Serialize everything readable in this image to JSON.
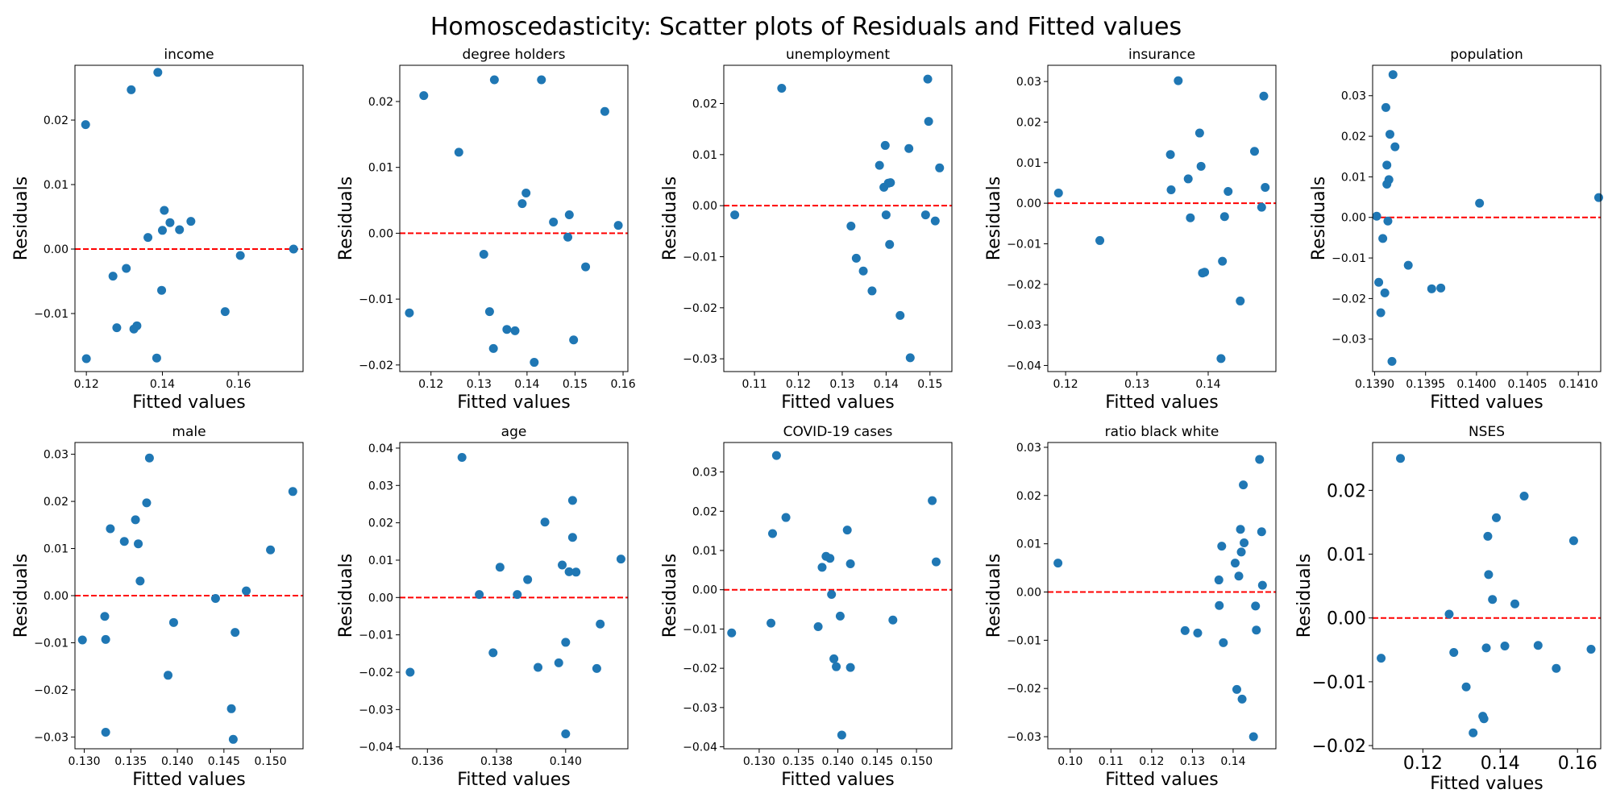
{
  "figure": {
    "title": "Homoscedasticity: Scatter plots of Residuals and Fitted values"
  },
  "colors": {
    "points": "#1f77b4",
    "reference_line": "#ff0000",
    "axes": "#000000"
  },
  "chart_data": [
    {
      "type": "scatter",
      "title": "income",
      "xlabel": "Fitted values",
      "ylabel": "Residuals",
      "xlim": [
        0.117,
        0.177
      ],
      "ylim": [
        -0.019,
        0.0285
      ],
      "xticks": [
        0.12,
        0.14,
        0.16
      ],
      "yticks": [
        -0.01,
        0.0,
        0.01,
        0.02
      ],
      "xtick_labels": [
        "0.12",
        "0.14",
        "0.16"
      ],
      "ytick_labels": [
        "−0.01",
        "0.00",
        "0.01",
        "0.02"
      ],
      "reference_line_y": 0,
      "x": [
        0.1198,
        0.127,
        0.128,
        0.1305,
        0.1318,
        0.1325,
        0.1333,
        0.1362,
        0.1385,
        0.1388,
        0.1398,
        0.14,
        0.1405,
        0.142,
        0.1445,
        0.1475,
        0.1565,
        0.1605,
        0.1745,
        0.12
      ],
      "y": [
        0.0193,
        -0.0042,
        -0.0122,
        -0.003,
        0.0247,
        -0.0124,
        -0.0119,
        0.0018,
        -0.0169,
        0.0274,
        -0.0064,
        0.0029,
        0.006,
        0.0041,
        0.003,
        0.0043,
        -0.0097,
        -0.001,
        0.0,
        -0.017
      ]
    },
    {
      "type": "scatter",
      "title": "degree holders",
      "xlabel": "Fitted values",
      "ylabel": "Residuals",
      "xlim": [
        0.1135,
        0.161
      ],
      "ylim": [
        -0.021,
        0.0255
      ],
      "xticks": [
        0.12,
        0.13,
        0.14,
        0.15,
        0.16
      ],
      "yticks": [
        -0.02,
        -0.01,
        0.0,
        0.01,
        0.02
      ],
      "xtick_labels": [
        "0.12",
        "0.13",
        "0.14",
        "0.15",
        "0.16"
      ],
      "ytick_labels": [
        "−0.02",
        "−0.01",
        "0.00",
        "0.01",
        "0.02"
      ],
      "reference_line_y": 0,
      "x": [
        0.1155,
        0.1185,
        0.1258,
        0.131,
        0.1322,
        0.133,
        0.1332,
        0.1358,
        0.1375,
        0.139,
        0.1398,
        0.1415,
        0.143,
        0.1455,
        0.1485,
        0.1488,
        0.1497,
        0.1522,
        0.1562,
        0.159
      ],
      "y": [
        -0.0121,
        0.0209,
        0.0123,
        -0.0032,
        -0.0119,
        -0.0175,
        0.0233,
        -0.0146,
        -0.0148,
        0.0045,
        0.0061,
        -0.0196,
        0.0233,
        0.0017,
        -0.0006,
        0.0028,
        -0.0162,
        -0.0051,
        0.0185,
        0.0012
      ]
    },
    {
      "type": "scatter",
      "title": "unemployment",
      "xlabel": "Fitted values",
      "ylabel": "Residuals",
      "xlim": [
        0.103,
        0.155
      ],
      "ylim": [
        -0.0325,
        0.0275
      ],
      "xticks": [
        0.11,
        0.12,
        0.13,
        0.14,
        0.15
      ],
      "yticks": [
        -0.03,
        -0.02,
        -0.01,
        0.0,
        0.01,
        0.02
      ],
      "xtick_labels": [
        "0.11",
        "0.12",
        "0.13",
        "0.14",
        "0.15"
      ],
      "ytick_labels": [
        "−0.03",
        "−0.02",
        "−0.01",
        "0.00",
        "0.01",
        "0.02"
      ],
      "reference_line_y": 0,
      "x": [
        0.1055,
        0.1162,
        0.132,
        0.1332,
        0.1348,
        0.1368,
        0.1385,
        0.1395,
        0.1398,
        0.14,
        0.1405,
        0.1408,
        0.141,
        0.1432,
        0.1452,
        0.1455,
        0.149,
        0.1495,
        0.1497,
        0.1512,
        0.1522
      ],
      "y": [
        -0.0018,
        0.023,
        -0.004,
        -0.0103,
        -0.0128,
        -0.0167,
        0.0079,
        0.0036,
        0.0118,
        -0.0018,
        0.0044,
        -0.0076,
        0.0045,
        -0.0215,
        0.0112,
        -0.0298,
        -0.0018,
        0.0248,
        0.0165,
        -0.003,
        0.0074
      ]
    },
    {
      "type": "scatter",
      "title": "insurance",
      "xlabel": "Fitted values",
      "ylabel": "Residuals",
      "xlim": [
        0.1175,
        0.1495
      ],
      "ylim": [
        -0.0415,
        0.034
      ],
      "xticks": [
        0.12,
        0.13,
        0.14
      ],
      "yticks": [
        -0.04,
        -0.03,
        -0.02,
        -0.01,
        0.0,
        0.01,
        0.02,
        0.03
      ],
      "xtick_labels": [
        "0.12",
        "0.13",
        "0.14"
      ],
      "ytick_labels": [
        "−0.04",
        "−0.03",
        "−0.02",
        "−0.01",
        "0.00",
        "0.01",
        "0.02",
        "0.03"
      ],
      "reference_line_y": 0,
      "x": [
        0.119,
        0.1248,
        0.1347,
        0.1348,
        0.1358,
        0.1372,
        0.1375,
        0.1388,
        0.139,
        0.1392,
        0.1395,
        0.1418,
        0.142,
        0.1423,
        0.1428,
        0.1445,
        0.1465,
        0.1475,
        0.1478,
        0.148
      ],
      "y": [
        0.0025,
        -0.0092,
        0.012,
        0.0033,
        0.0302,
        0.006,
        -0.0036,
        0.0173,
        0.0091,
        -0.0172,
        -0.017,
        -0.0383,
        -0.0143,
        -0.0033,
        0.0029,
        -0.0241,
        0.0128,
        -0.001,
        0.0264,
        0.0039
      ]
    },
    {
      "type": "scatter",
      "title": "population",
      "xlabel": "Fitted values",
      "ylabel": "Residuals",
      "xlim": [
        0.13898,
        0.14122
      ],
      "ylim": [
        -0.038,
        0.0375
      ],
      "xticks": [
        0.139,
        0.1395,
        0.14,
        0.1405,
        0.141
      ],
      "yticks": [
        -0.03,
        -0.02,
        -0.01,
        0.0,
        0.01,
        0.02,
        0.03
      ],
      "xtick_labels": [
        "0.1390",
        "0.1395",
        "0.1400",
        "0.1405",
        "0.1410"
      ],
      "ytick_labels": [
        "−0.03",
        "−0.02",
        "−0.01",
        "0.00",
        "0.01",
        "0.02",
        "0.03"
      ],
      "reference_line_y": 0,
      "x": [
        0.13902,
        0.13904,
        0.13906,
        0.13908,
        0.1391,
        0.13911,
        0.13912,
        0.13912,
        0.13913,
        0.13914,
        0.13915,
        0.13917,
        0.13918,
        0.1392,
        0.13933,
        0.13956,
        0.13965,
        0.14003,
        0.1412
      ],
      "y": [
        0.0003,
        -0.016,
        -0.0235,
        -0.0052,
        -0.0186,
        0.0271,
        0.0129,
        0.0082,
        -0.0009,
        0.0093,
        0.0205,
        -0.0355,
        0.0352,
        0.0174,
        -0.0118,
        -0.0176,
        -0.0174,
        0.0035,
        0.0049
      ]
    },
    {
      "type": "scatter",
      "title": "male",
      "xlabel": "Fitted values",
      "ylabel": "Residuals",
      "xlim": [
        0.129,
        0.1535
      ],
      "ylim": [
        -0.0325,
        0.0325
      ],
      "xticks": [
        0.13,
        0.135,
        0.14,
        0.145,
        0.15
      ],
      "yticks": [
        -0.03,
        -0.02,
        -0.01,
        0.0,
        0.01,
        0.02,
        0.03
      ],
      "xtick_labels": [
        "0.130",
        "0.135",
        "0.140",
        "0.145",
        "0.150"
      ],
      "ytick_labels": [
        "−0.03",
        "−0.02",
        "−0.01",
        "0.00",
        "0.01",
        "0.02",
        "0.03"
      ],
      "reference_line_y": 0,
      "x": [
        0.1298,
        0.1322,
        0.1323,
        0.1323,
        0.1328,
        0.1343,
        0.1355,
        0.1358,
        0.136,
        0.1367,
        0.137,
        0.139,
        0.1396,
        0.1441,
        0.1458,
        0.146,
        0.1462,
        0.1474,
        0.15,
        0.1524
      ],
      "y": [
        -0.0094,
        -0.0044,
        -0.0093,
        -0.029,
        0.0142,
        0.0115,
        0.0161,
        0.011,
        0.0031,
        0.0197,
        0.0292,
        -0.0169,
        -0.0057,
        -0.0006,
        -0.024,
        -0.0305,
        -0.0078,
        0.001,
        0.0097,
        0.0221
      ]
    },
    {
      "type": "scatter",
      "title": "age",
      "xlabel": "Fitted values",
      "ylabel": "Residuals",
      "xlim": [
        0.1352,
        0.1418
      ],
      "ylim": [
        -0.0405,
        0.0415
      ],
      "xticks": [
        0.136,
        0.138,
        0.14
      ],
      "yticks": [
        -0.04,
        -0.03,
        -0.02,
        -0.01,
        0.0,
        0.01,
        0.02,
        0.03,
        0.04
      ],
      "xtick_labels": [
        "0.136",
        "0.138",
        "0.140"
      ],
      "ytick_labels": [
        "−0.04",
        "−0.03",
        "−0.02",
        "−0.01",
        "0.00",
        "0.01",
        "0.02",
        "0.03",
        "0.04"
      ],
      "reference_line_y": 0,
      "x": [
        0.1355,
        0.137,
        0.1375,
        0.1379,
        0.1381,
        0.1386,
        0.1389,
        0.1392,
        0.1394,
        0.1398,
        0.1399,
        0.14,
        0.14,
        0.1401,
        0.1402,
        0.1402,
        0.1403,
        0.1409,
        0.141,
        0.1416
      ],
      "y": [
        -0.02,
        0.0375,
        0.0008,
        -0.0148,
        0.0081,
        0.0008,
        0.0048,
        -0.0187,
        0.0202,
        -0.0175,
        0.0087,
        -0.012,
        -0.0365,
        0.0069,
        0.0161,
        0.026,
        0.0068,
        -0.019,
        -0.0071,
        0.0103
      ]
    },
    {
      "type": "scatter",
      "title": "COVID-19 cases",
      "xlabel": "Fitted values",
      "ylabel": "Residuals",
      "xlim": [
        0.1255,
        0.1545
      ],
      "ylim": [
        -0.0405,
        0.0375
      ],
      "xticks": [
        0.13,
        0.135,
        0.14,
        0.145,
        0.15
      ],
      "yticks": [
        -0.04,
        -0.03,
        -0.02,
        -0.01,
        0.0,
        0.01,
        0.02,
        0.03
      ],
      "xtick_labels": [
        "0.130",
        "0.135",
        "0.140",
        "0.145",
        "0.150"
      ],
      "ytick_labels": [
        "−0.04",
        "−0.03",
        "−0.02",
        "−0.01",
        "0.00",
        "0.01",
        "0.02",
        "0.03"
      ],
      "reference_line_y": 0,
      "x": [
        0.1265,
        0.1315,
        0.1317,
        0.1322,
        0.1334,
        0.1375,
        0.138,
        0.1385,
        0.139,
        0.1392,
        0.1395,
        0.1398,
        0.1403,
        0.1405,
        0.1412,
        0.1416,
        0.1416,
        0.147,
        0.152,
        0.1525
      ],
      "y": [
        -0.011,
        -0.0085,
        0.0143,
        0.0342,
        0.0184,
        -0.0094,
        0.0057,
        0.0085,
        0.008,
        -0.0012,
        -0.0176,
        -0.0196,
        -0.0067,
        -0.037,
        0.0152,
        0.0066,
        -0.0198,
        -0.0077,
        0.0227,
        0.0071
      ]
    },
    {
      "type": "scatter",
      "title": "ratio black white",
      "xlabel": "Fitted values",
      "ylabel": "Residuals",
      "xlim": [
        0.0945,
        0.1505
      ],
      "ylim": [
        -0.0325,
        0.031
      ],
      "xticks": [
        0.1,
        0.11,
        0.12,
        0.13,
        0.14
      ],
      "yticks": [
        -0.03,
        -0.02,
        -0.01,
        0.0,
        0.01,
        0.02,
        0.03
      ],
      "xtick_labels": [
        "0.10",
        "0.11",
        "0.12",
        "0.13",
        "0.14"
      ],
      "ytick_labels": [
        "−0.03",
        "−0.02",
        "−0.01",
        "0.00",
        "0.01",
        "0.02",
        "0.03"
      ],
      "reference_line_y": 0,
      "x": [
        0.097,
        0.1282,
        0.1313,
        0.1365,
        0.1366,
        0.1372,
        0.1376,
        0.1405,
        0.1409,
        0.1414,
        0.1418,
        0.142,
        0.1422,
        0.1425,
        0.1427,
        0.145,
        0.1455,
        0.1457,
        0.1465,
        0.147,
        0.1472
      ],
      "y": [
        0.006,
        -0.008,
        -0.0085,
        0.0025,
        -0.0028,
        0.0095,
        -0.0105,
        0.006,
        -0.0202,
        0.0033,
        0.013,
        0.0083,
        -0.0222,
        0.0222,
        0.0102,
        -0.03,
        -0.0029,
        -0.0079,
        0.0275,
        0.0125,
        0.0014
      ]
    },
    {
      "type": "scatter",
      "title": "NSES",
      "xlabel": "Fitted values",
      "ylabel": "Residuals",
      "xlim": [
        0.107,
        0.166
      ],
      "ylim": [
        -0.0205,
        0.0275
      ],
      "xticks": [
        0.12,
        0.14,
        0.16
      ],
      "yticks": [
        -0.02,
        -0.01,
        0.0,
        0.01,
        0.02
      ],
      "xtick_labels": [
        "0.12",
        "0.14",
        "0.16"
      ],
      "ytick_labels": [
        "−0.02",
        "−0.01",
        "0.00",
        "0.01",
        "0.02"
      ],
      "reference_line_y": 0,
      "x": [
        0.1092,
        0.1142,
        0.1268,
        0.128,
        0.1312,
        0.133,
        0.1355,
        0.1358,
        0.1364,
        0.1368,
        0.137,
        0.138,
        0.139,
        0.1412,
        0.1438,
        0.1462,
        0.1498,
        0.1545,
        0.159,
        0.1635
      ],
      "y": [
        -0.0063,
        0.025,
        0.0006,
        -0.0054,
        -0.0108,
        -0.018,
        -0.0154,
        -0.0158,
        -0.0047,
        0.0128,
        0.0068,
        0.0029,
        0.0157,
        -0.0044,
        0.0022,
        0.0191,
        -0.0043,
        -0.0079,
        0.0121,
        -0.0049
      ]
    }
  ]
}
